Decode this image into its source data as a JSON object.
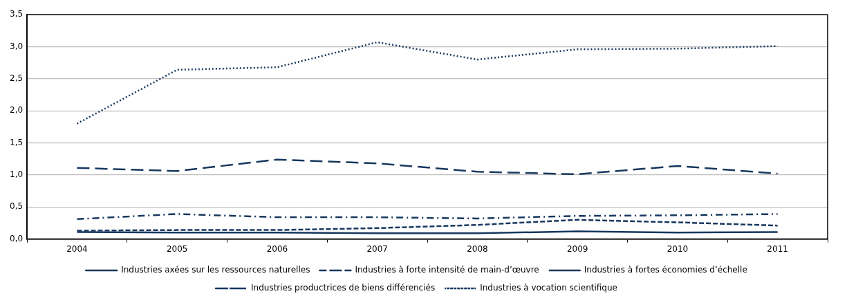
{
  "chart_data": {
    "type": "line",
    "categories": [
      "2004",
      "2005",
      "2006",
      "2007",
      "2008",
      "2009",
      "2010",
      "2011"
    ],
    "series": [
      {
        "name": "Industries axées sur les ressources naturelles",
        "color": "#17375e",
        "line_style": "solid",
        "values": [
          0.11,
          0.1,
          0.1,
          0.09,
          0.09,
          0.12,
          0.1,
          0.11
        ]
      },
      {
        "name": "Industries à forte intensité de main-d’œuvre",
        "color": "#17375e",
        "line_style": "dashdot",
        "values": [
          0.31,
          0.39,
          0.34,
          0.34,
          0.32,
          0.36,
          0.37,
          0.39
        ]
      },
      {
        "name": "Industries à fortes économies d’échelle",
        "color": "#17375e",
        "line_style": "dashed",
        "values": [
          0.13,
          0.14,
          0.14,
          0.17,
          0.22,
          0.3,
          0.26,
          0.21
        ]
      },
      {
        "name": "Industries productrices de biens différenciés",
        "color": "#17375e",
        "line_style": "longdash",
        "values": [
          1.11,
          1.06,
          1.24,
          1.18,
          1.05,
          1.01,
          1.14,
          1.02
        ]
      },
      {
        "name": "Industries à vocation scientifique",
        "color": "#17375e",
        "line_style": "dotted",
        "values": [
          1.8,
          2.64,
          2.68,
          3.07,
          2.8,
          2.96,
          2.97,
          3.01
        ]
      }
    ],
    "ylim": [
      0,
      3.5
    ],
    "yticks": [
      {
        "value": 0,
        "label": "0,0"
      },
      {
        "value": 0.5,
        "label": "0,5"
      },
      {
        "value": 1,
        "label": "1,0"
      },
      {
        "value": 1.5,
        "label": "1,5"
      },
      {
        "value": 2,
        "label": "2,0"
      },
      {
        "value": 2.5,
        "label": "2,5"
      },
      {
        "value": 3,
        "label": "3,0"
      },
      {
        "value": 3.5,
        "label": "3,5"
      }
    ],
    "grid": "y",
    "legend": "bottom",
    "marker": "none"
  }
}
